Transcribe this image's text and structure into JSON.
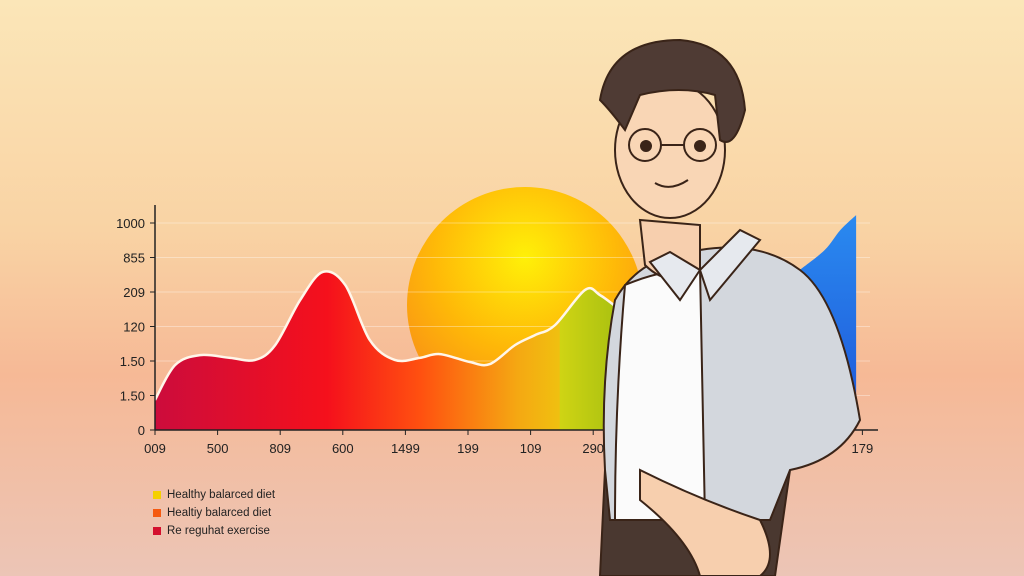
{
  "chart_data": {
    "type": "area",
    "title": "",
    "xlabel": "",
    "ylabel": "",
    "x_ticks": [
      "009",
      "500",
      "809",
      "600",
      "1499",
      "199",
      "109",
      "290",
      "179"
    ],
    "y_ticks": [
      "0",
      "1.50",
      "1.50",
      "120",
      "209",
      "855",
      "1000"
    ],
    "grid": true,
    "legend_position": "bottom-left",
    "series": [
      {
        "color": "#e8102a",
        "points": [
          [
            0,
            0.87
          ],
          [
            0.32,
            1.88
          ],
          [
            0.72,
            2.17
          ],
          [
            1.2,
            2.09
          ],
          [
            1.6,
            2.03
          ],
          [
            1.92,
            2.46
          ],
          [
            2.32,
            3.77
          ],
          [
            2.68,
            4.58
          ],
          [
            3.04,
            4.2
          ],
          [
            3.43,
            2.61
          ],
          [
            3.83,
            2.03
          ],
          [
            4.23,
            2.09
          ],
          [
            4.55,
            2.2
          ],
          [
            5.03,
            1.97
          ],
          [
            5.35,
            1.91
          ],
          [
            5.75,
            2.46
          ],
          [
            6.07,
            2.75
          ],
          [
            6.39,
            3.04
          ],
          [
            6.87,
            4.06
          ],
          [
            7.11,
            3.91
          ],
          [
            7.43,
            3.48
          ]
        ]
      },
      {
        "color": "#2a6fe8",
        "points": [
          [
            10.3,
            4.64
          ],
          [
            10.7,
            5.22
          ],
          [
            10.95,
            5.8
          ],
          [
            11.2,
            6.23
          ]
        ]
      }
    ],
    "legend": [
      {
        "label": "Healthy balarced diet",
        "color": "#f5d000"
      },
      {
        "label": "Healtiy balarced diet",
        "color": "#f55a10"
      },
      {
        "label": "Re reguhat exercise",
        "color": "#d4102e"
      }
    ]
  }
}
